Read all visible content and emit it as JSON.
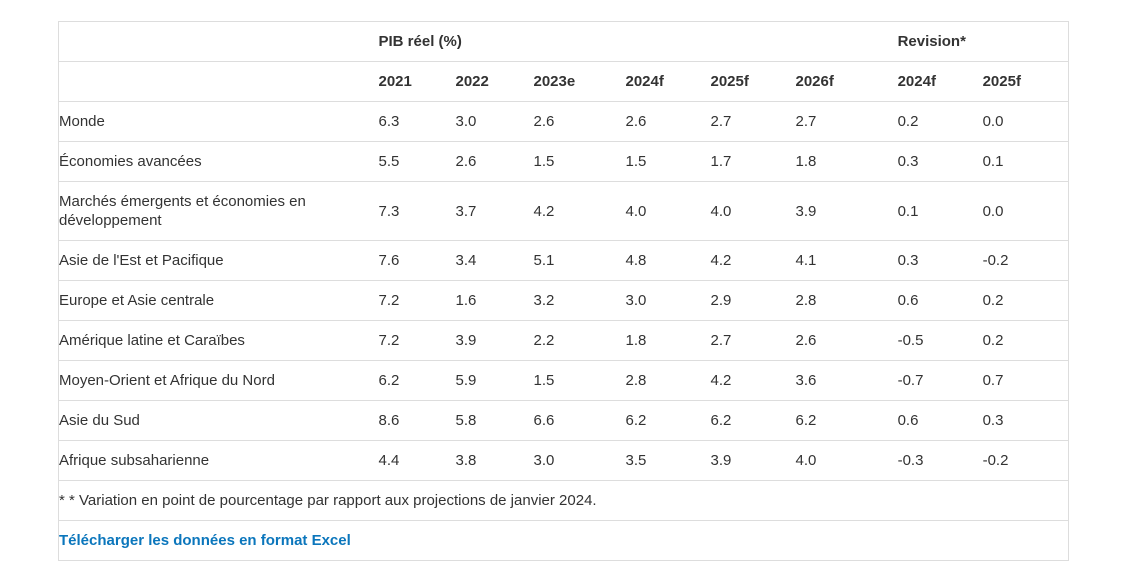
{
  "chart_data": {
    "type": "table",
    "group_headers": {
      "pib": "PIB réel (%)",
      "revision": "Revision*"
    },
    "year_columns": [
      "2021",
      "2022",
      "2023e",
      "2024f",
      "2025f",
      "2026f"
    ],
    "revision_columns": [
      "2024f",
      "2025f"
    ],
    "rows": [
      {
        "label": "Monde",
        "bold": true,
        "indent": 0,
        "values": [
          "6.3",
          "3.0",
          "2.6",
          "2.6",
          "2.7",
          "2.7"
        ],
        "revisions": [
          "0.2",
          "0.0"
        ]
      },
      {
        "label": "Économies avancées",
        "bold": true,
        "indent": 0,
        "values": [
          "5.5",
          "2.6",
          "1.5",
          "1.5",
          "1.7",
          "1.8"
        ],
        "revisions": [
          "0.3",
          "0.1"
        ]
      },
      {
        "label": "Marchés émergents et économies en développement",
        "bold": true,
        "indent": 0,
        "values": [
          "7.3",
          "3.7",
          "4.2",
          "4.0",
          "4.0",
          "3.9"
        ],
        "revisions": [
          "0.1",
          "0.0"
        ]
      },
      {
        "label": "Asie de l'Est et Pacifique",
        "bold": false,
        "indent": 2,
        "values": [
          "7.6",
          "3.4",
          "5.1",
          "4.8",
          "4.2",
          "4.1"
        ],
        "revisions": [
          "0.3",
          "-0.2"
        ]
      },
      {
        "label": "Europe et Asie centrale",
        "bold": false,
        "indent": 2,
        "values": [
          "7.2",
          "1.6",
          "3.2",
          "3.0",
          "2.9",
          "2.8"
        ],
        "revisions": [
          "0.6",
          "0.2"
        ]
      },
      {
        "label": "Amérique latine et Caraïbes",
        "bold": false,
        "indent": 2,
        "values": [
          "7.2",
          "3.9",
          "2.2",
          "1.8",
          "2.7",
          "2.6"
        ],
        "revisions": [
          "-0.5",
          "0.2"
        ]
      },
      {
        "label": "Moyen-Orient et Afrique du Nord",
        "bold": false,
        "indent": 2,
        "values": [
          "6.2",
          "5.9",
          "1.5",
          "2.8",
          "4.2",
          "3.6"
        ],
        "revisions": [
          "-0.7",
          "0.7"
        ]
      },
      {
        "label": "Asie du Sud",
        "bold": false,
        "indent": 1,
        "values": [
          "8.6",
          "5.8",
          "6.6",
          "6.2",
          "6.2",
          "6.2"
        ],
        "revisions": [
          "0.6",
          "0.3"
        ]
      },
      {
        "label": "Afrique subsaharienne",
        "bold": false,
        "indent": 1,
        "values": [
          "4.4",
          "3.8",
          "3.0",
          "3.5",
          "3.9",
          "4.0"
        ],
        "revisions": [
          "-0.3",
          "-0.2"
        ]
      }
    ],
    "footnote": "* * Variation en point de pourcentage par rapport aux projections de janvier 2024.",
    "download_link_label": "Télécharger les données en format Excel"
  },
  "colors": {
    "text": "#333333",
    "border": "#dddddd",
    "link": "#0b76bc"
  }
}
